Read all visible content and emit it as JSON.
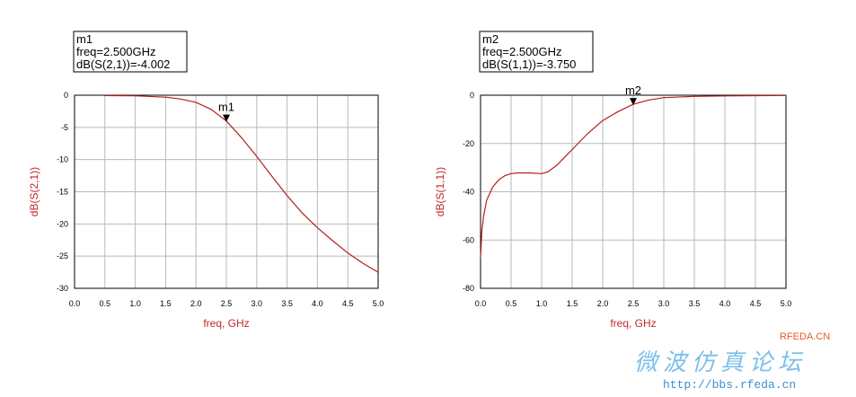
{
  "chart_data": [
    {
      "type": "line",
      "xlabel": "freq, GHz",
      "ylabel": "dB(S(2,1))",
      "xlim": [
        0.0,
        5.0
      ],
      "ylim": [
        -30,
        0
      ],
      "x_ticks": [
        "0.0",
        "0.5",
        "1.0",
        "1.5",
        "2.0",
        "2.5",
        "3.0",
        "3.5",
        "4.0",
        "4.5",
        "5.0"
      ],
      "y_ticks": [
        "0",
        "-5",
        "-10",
        "-15",
        "-20",
        "-25",
        "-30"
      ],
      "grid": true,
      "series": [
        {
          "x": [
            0.5,
            1.0,
            1.5,
            1.75,
            2.0,
            2.25,
            2.5,
            2.75,
            3.0,
            3.25,
            3.5,
            3.75,
            4.0,
            4.25,
            4.5,
            4.75,
            5.0
          ],
          "y": [
            -0.05,
            -0.1,
            -0.3,
            -0.6,
            -1.1,
            -2.2,
            -4.0,
            -6.6,
            -9.5,
            -12.6,
            -15.6,
            -18.3,
            -20.6,
            -22.6,
            -24.5,
            -26.1,
            -27.5
          ]
        }
      ],
      "marker": {
        "name": "m1",
        "lines": [
          "m1",
          "freq=2.500GHz",
          "dB(S(2,1))=-4.002"
        ],
        "x": 2.5,
        "y": -4.002
      }
    },
    {
      "type": "line",
      "xlabel": "freq, GHz",
      "ylabel": "dB(S(1,1))",
      "xlim": [
        0.0,
        5.0
      ],
      "ylim": [
        -80,
        0
      ],
      "x_ticks": [
        "0.0",
        "0.5",
        "1.0",
        "1.5",
        "2.0",
        "2.5",
        "3.0",
        "3.5",
        "4.0",
        "4.5",
        "5.0"
      ],
      "y_ticks": [
        "0",
        "-20",
        "-40",
        "-60",
        "-80"
      ],
      "grid": true,
      "series": [
        {
          "x": [
            0.0,
            0.02,
            0.05,
            0.1,
            0.2,
            0.3,
            0.4,
            0.5,
            0.6,
            0.8,
            1.0,
            1.1,
            1.25,
            1.5,
            1.75,
            2.0,
            2.25,
            2.5,
            2.75,
            3.0,
            3.5,
            4.0,
            4.5,
            5.0
          ],
          "y": [
            -67.5,
            -56.5,
            -50,
            -43.5,
            -38,
            -35,
            -33.3,
            -32.5,
            -32.2,
            -32.2,
            -32.5,
            -31.8,
            -29,
            -22.5,
            -16,
            -10.5,
            -6.8,
            -3.75,
            -2.0,
            -1.0,
            -0.5,
            -0.3,
            -0.2,
            -0.1
          ]
        }
      ],
      "marker": {
        "name": "m2",
        "lines": [
          "m2",
          "freq=2.500GHz",
          "dB(S(1,1))=-3.750"
        ],
        "x": 2.5,
        "y": -3.75
      }
    }
  ],
  "watermark": {
    "site": "RFEDA.CN",
    "title": "微波仿真论坛",
    "url": "http://bbs.rfeda.cn"
  }
}
